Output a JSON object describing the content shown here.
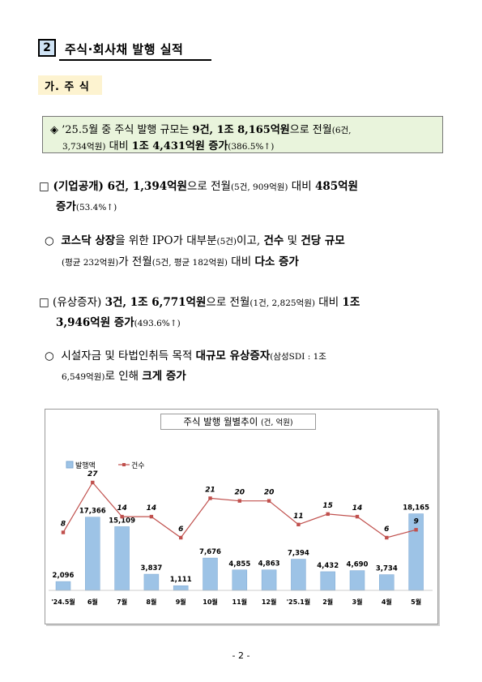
{
  "section": {
    "number": "2",
    "title": "주식·회사채 발행 실적"
  },
  "subsection": {
    "title": "가. 주 식"
  },
  "summary": {
    "bullet": "◈",
    "l1_a": "’25.5월 중 주식 발행 규모는 ",
    "l1_b": "9건, 1조 8,165억원",
    "l1_c": "으로 전월",
    "l1_d": "(6건,",
    "l2_a": "3,734억원)",
    "l2_b": " 대비 ",
    "l2_c": "1조 4,431억원 증가",
    "l2_d": "(386.5%↑)"
  },
  "p1": {
    "box": "□",
    "a": " (기업공개) 6건, 1,394억원",
    "b": "으로 전월",
    "c": "(5건, 909억원)",
    "d": " 대비 ",
    "e": "485억원",
    "f": "증가",
    "g": "(53.4%↑)"
  },
  "p1s": {
    "circle": "○",
    "a": "코스닥 상장",
    "b": "을 위한 IPO가 대부분",
    "c": "(5건)",
    "d": "이고, ",
    "e": "건수",
    "f": " 및 ",
    "g": "건당 규모",
    "h": "(평균 232억원)",
    "i": "가 전월",
    "j": "(5건, 평균 182억원)",
    "k": " 대비 ",
    "l": "다소 증가"
  },
  "p2": {
    "box": "□",
    "a": " (유상증자) ",
    "b": "3건, 1조 6,771억원",
    "c": "으로 전월",
    "d": "(1건, 2,825억원)",
    "e": " 대비 ",
    "f": "1조",
    "g": "3,946억원 증가",
    "h": "(493.6%↑)"
  },
  "p2s": {
    "circle": "○",
    "a": "시설자금 및 타법인취득 목적 ",
    "b": "대규모 유상증자",
    "c": "(삼성SDI : 1조",
    "d": "6,549억원)",
    "e": "로 인해 ",
    "f": "크게 증가"
  },
  "chart_title": {
    "main": "주식 발행 월별추이",
    "unit": "(건, 억원)"
  },
  "chart_data": {
    "type": "bar",
    "categories": [
      "'24.5월",
      "6월",
      "7월",
      "8월",
      "9월",
      "10월",
      "11월",
      "12월",
      "'25.1월",
      "2월",
      "3월",
      "4월",
      "5월"
    ],
    "series": [
      {
        "name": "발행액",
        "type": "bar",
        "values": [
          2096,
          17366,
          15109,
          3837,
          1111,
          7676,
          4855,
          4863,
          7394,
          4432,
          4690,
          3734,
          18165
        ],
        "labels": [
          "2,096",
          "17,366",
          "15,109",
          "3,837",
          "1,111",
          "7,676",
          "4,855",
          "4,863",
          "7,394",
          "4,432",
          "4,690",
          "3,734",
          "18,165"
        ]
      },
      {
        "name": "건수",
        "type": "line",
        "values": [
          8,
          27,
          14,
          14,
          6,
          21,
          20,
          20,
          11,
          15,
          14,
          6,
          9
        ]
      }
    ],
    "colors": {
      "bar": "#9dc3e6",
      "bar_edge": "#7fa9d3",
      "line": "#c0504d"
    },
    "legend_position": "top-left"
  },
  "footer": "- 2 -"
}
